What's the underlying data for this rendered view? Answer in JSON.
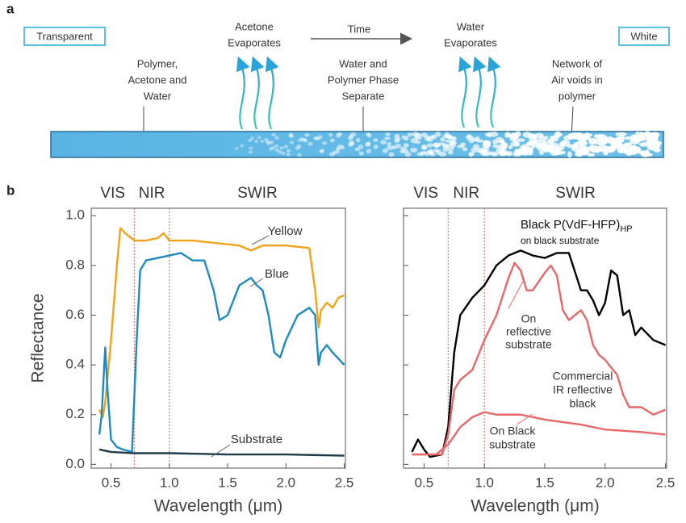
{
  "diagram": {
    "panel_label": "a",
    "start_state": "Transparent",
    "end_state": "White",
    "time_label": "Time",
    "left_evaporation": [
      "Acetone",
      "Evaporates"
    ],
    "right_evaporation": [
      "Water",
      "Evaporates"
    ],
    "stage_1": [
      "Polymer,",
      "Acetone and",
      "Water"
    ],
    "stage_2": [
      "Water and",
      "Polymer Phase",
      "Separate"
    ],
    "stage_3": [
      "Network of",
      "Air voids in",
      "polymer"
    ]
  },
  "panel_label_b": "b",
  "chart_data": [
    {
      "type": "line",
      "regions": {
        "labels": [
          "VIS",
          "NIR",
          "SWIR"
        ],
        "dividers": [
          0.7,
          1.0
        ],
        "divider_color": "#e07a6a"
      },
      "xlabel": "Wavelength (μm)",
      "ylabel": "Reflectance",
      "xlim": [
        0.33,
        2.51
      ],
      "ylim": [
        -0.015,
        1.03
      ],
      "xticks": [
        0.5,
        {
          "value": 1,
          "label": "1.0"
        },
        1.5,
        {
          "value": 2,
          "label": "2.0"
        },
        2.5
      ],
      "yticks": [
        {
          "value": 0,
          "label": "0.0"
        },
        0.2,
        0.4,
        0.6,
        0.8,
        {
          "value": 1,
          "label": "1.0"
        }
      ],
      "show_ytick_labels": true,
      "series": [
        {
          "name": "Yellow",
          "color": "#f2a31b",
          "x": [
            0.4,
            0.43,
            0.45,
            0.5,
            0.55,
            0.58,
            0.62,
            0.7,
            0.8,
            0.9,
            0.95,
            1.0,
            1.2,
            1.4,
            1.6,
            1.7,
            1.8,
            2.0,
            2.2,
            2.25,
            2.28,
            2.3,
            2.35,
            2.4,
            2.45,
            2.5
          ],
          "values": [
            0.22,
            0.19,
            0.25,
            0.5,
            0.8,
            0.95,
            0.93,
            0.9,
            0.9,
            0.91,
            0.93,
            0.9,
            0.9,
            0.89,
            0.88,
            0.86,
            0.88,
            0.88,
            0.87,
            0.7,
            0.55,
            0.62,
            0.65,
            0.63,
            0.67,
            0.68
          ]
        },
        {
          "name": "Blue",
          "color": "#1f8ac0",
          "x": [
            0.4,
            0.42,
            0.45,
            0.47,
            0.5,
            0.55,
            0.6,
            0.68,
            0.72,
            0.75,
            0.8,
            1.0,
            1.1,
            1.2,
            1.3,
            1.38,
            1.43,
            1.5,
            1.6,
            1.7,
            1.75,
            1.8,
            1.85,
            1.9,
            1.95,
            2.0,
            2.1,
            2.2,
            2.25,
            2.28,
            2.3,
            2.35,
            2.4,
            2.5
          ],
          "values": [
            0.12,
            0.2,
            0.47,
            0.3,
            0.1,
            0.07,
            0.06,
            0.05,
            0.5,
            0.78,
            0.82,
            0.84,
            0.85,
            0.82,
            0.82,
            0.7,
            0.58,
            0.6,
            0.72,
            0.75,
            0.72,
            0.7,
            0.6,
            0.45,
            0.43,
            0.5,
            0.6,
            0.63,
            0.6,
            0.4,
            0.45,
            0.48,
            0.45,
            0.4
          ]
        },
        {
          "name": "Substrate",
          "color": "#1d3b4a",
          "x": [
            0.4,
            0.5,
            0.7,
            1.0,
            1.5,
            2.0,
            2.5
          ],
          "values": [
            0.06,
            0.05,
            0.045,
            0.045,
            0.04,
            0.04,
            0.035
          ]
        }
      ]
    },
    {
      "type": "line",
      "regions": {
        "labels": [
          "VIS",
          "NIR",
          "SWIR"
        ],
        "dividers": [
          0.7,
          1.0
        ],
        "divider_color": "#e07a6a"
      },
      "xlabel": "Wavelength (μm)",
      "xlim": [
        0.33,
        2.51
      ],
      "ylim": [
        -0.015,
        1.03
      ],
      "xticks": [
        0.5,
        {
          "value": 1,
          "label": "1.0"
        },
        1.5,
        {
          "value": 2,
          "label": "2.0"
        },
        2.5
      ],
      "yticks": [
        0,
        0.2,
        0.4,
        0.6,
        0.8,
        1
      ],
      "show_ytick_labels": false,
      "series": [
        {
          "name": "Black P(VdF-HFP)",
          "name_subscript": "HP",
          "name_note": "on black substrate",
          "color": "#000000",
          "x": [
            0.4,
            0.45,
            0.5,
            0.55,
            0.65,
            0.7,
            0.75,
            0.8,
            0.9,
            1.0,
            1.1,
            1.2,
            1.3,
            1.4,
            1.5,
            1.6,
            1.7,
            1.8,
            1.85,
            1.9,
            1.95,
            2.0,
            2.05,
            2.1,
            2.15,
            2.2,
            2.25,
            2.3,
            2.4,
            2.5
          ],
          "values": [
            0.05,
            0.1,
            0.06,
            0.03,
            0.04,
            0.15,
            0.45,
            0.6,
            0.67,
            0.72,
            0.8,
            0.84,
            0.86,
            0.84,
            0.83,
            0.85,
            0.85,
            0.7,
            0.7,
            0.66,
            0.6,
            0.65,
            0.78,
            0.76,
            0.6,
            0.62,
            0.52,
            0.55,
            0.5,
            0.48
          ]
        },
        {
          "name": [
            "On",
            "reflective",
            "substrate"
          ],
          "color": "#e8686a",
          "x": [
            0.4,
            0.5,
            0.65,
            0.7,
            0.75,
            0.8,
            0.9,
            1.0,
            1.1,
            1.2,
            1.25,
            1.3,
            1.35,
            1.4,
            1.5,
            1.55,
            1.6,
            1.65,
            1.7,
            1.8,
            1.85,
            1.9,
            1.95,
            2.0,
            2.1,
            2.15,
            2.2,
            2.3,
            2.4,
            2.5
          ],
          "values": [
            0.04,
            0.04,
            0.04,
            0.12,
            0.3,
            0.34,
            0.38,
            0.5,
            0.6,
            0.75,
            0.81,
            0.78,
            0.7,
            0.7,
            0.77,
            0.8,
            0.76,
            0.62,
            0.58,
            0.62,
            0.58,
            0.48,
            0.44,
            0.42,
            0.36,
            0.28,
            0.23,
            0.23,
            0.2,
            0.22
          ]
        },
        {
          "name": [
            "On Black",
            "substrate"
          ],
          "color": "#e8686a",
          "x": [
            0.4,
            0.6,
            0.7,
            0.8,
            0.9,
            1.0,
            1.1,
            1.3,
            1.5,
            1.8,
            2.0,
            2.3,
            2.5
          ],
          "values": [
            0.04,
            0.04,
            0.08,
            0.15,
            0.19,
            0.21,
            0.2,
            0.2,
            0.18,
            0.16,
            0.14,
            0.13,
            0.12
          ]
        }
      ],
      "annotation": [
        "Commercial",
        "IR reflective",
        "black"
      ]
    }
  ]
}
